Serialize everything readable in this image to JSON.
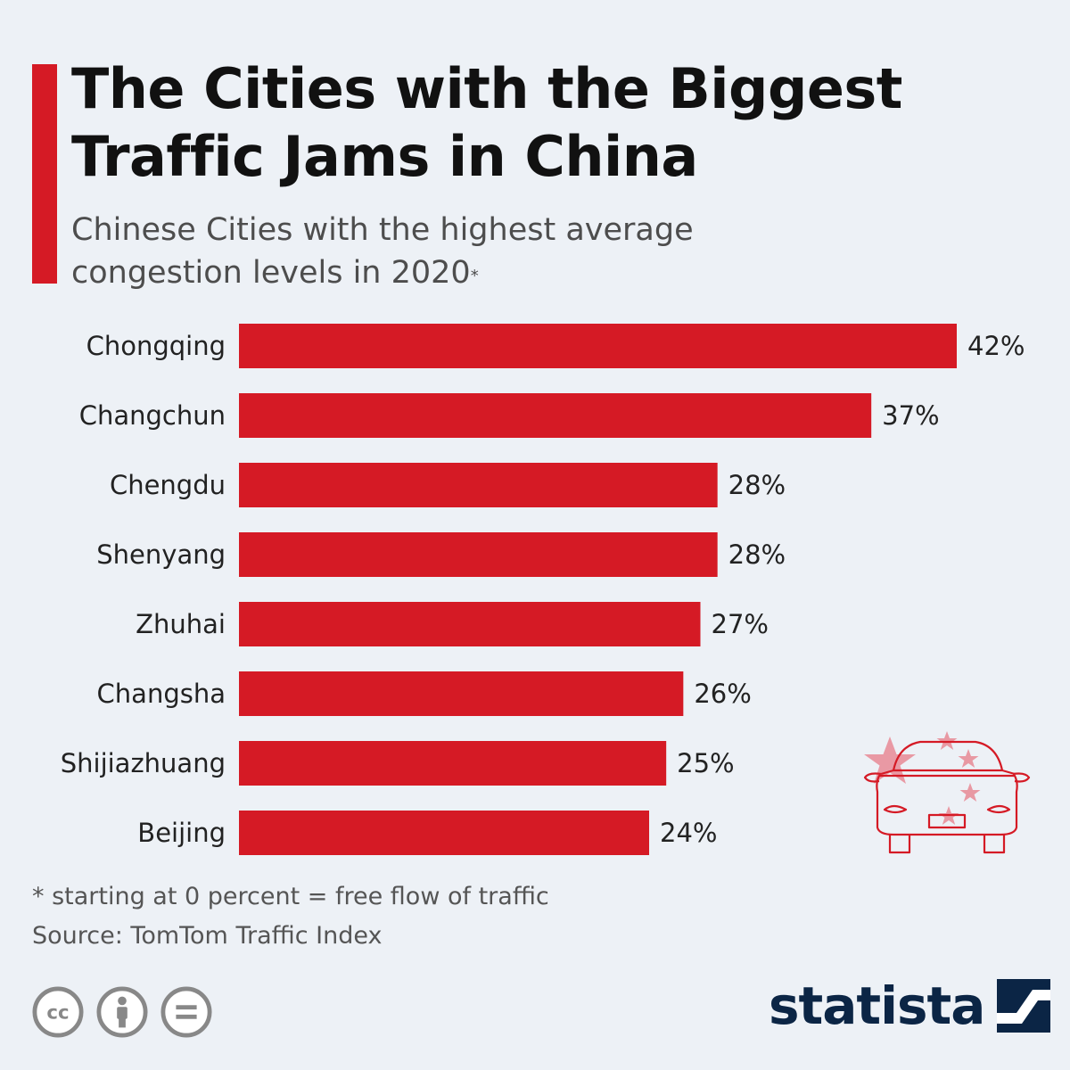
{
  "header": {
    "title": "The Cities with the Biggest Traffic Jams in China",
    "subtitle": "Chinese Cities with the highest average congestion levels in 2020",
    "subtitle_marker": "*"
  },
  "chart_data": {
    "type": "bar",
    "orientation": "horizontal",
    "title": "The Cities with the Biggest Traffic Jams in China",
    "subtitle": "Chinese Cities with the highest average congestion levels in 2020*",
    "categories": [
      "Chongqing",
      "Changchun",
      "Chengdu",
      "Shenyang",
      "Zhuhai",
      "Changsha",
      "Shijiazhuang",
      "Beijing"
    ],
    "values": [
      42,
      37,
      28,
      28,
      27,
      26,
      25,
      24
    ],
    "value_labels": [
      "42%",
      "37%",
      "28%",
      "28%",
      "27%",
      "26%",
      "25%",
      "24%"
    ],
    "unit": "%",
    "xlabel": "",
    "ylabel": "",
    "xlim": [
      0,
      42
    ],
    "grid": false,
    "bar_color": "#d51a25"
  },
  "notes": {
    "footnote": "* starting at 0 percent = free flow of traffic",
    "source": "Source: TomTom Traffic Index"
  },
  "license_icons": [
    "cc-icon",
    "attribution-icon",
    "no-derivatives-icon"
  ],
  "brand": {
    "name": "statista",
    "color": "#0b2545",
    "accent": "#d51a25"
  }
}
